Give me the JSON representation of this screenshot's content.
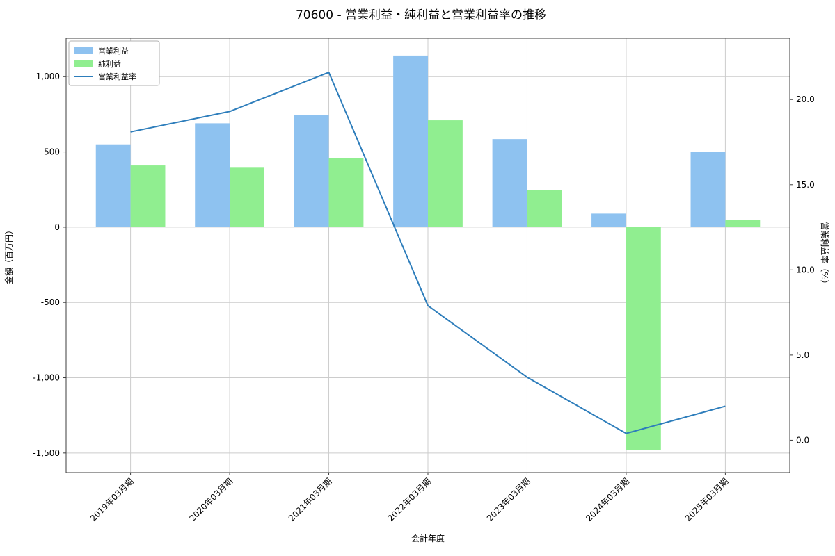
{
  "title": "70600 - 営業利益・純利益と営業利益率の推移",
  "chart_data": {
    "type": "bar",
    "categories": [
      "2019年03月期",
      "2020年03月期",
      "2021年03月期",
      "2022年03月期",
      "2023年03月期",
      "2024年03月期",
      "2025年03月期"
    ],
    "series": [
      {
        "name": "営業利益",
        "type": "bar",
        "axis": "left",
        "color": "#8ec2f0",
        "values": [
          550,
          690,
          745,
          1140,
          585,
          90,
          500
        ]
      },
      {
        "name": "純利益",
        "type": "bar",
        "axis": "left",
        "color": "#90ee90",
        "values": [
          410,
          395,
          460,
          710,
          245,
          -1480,
          50
        ]
      },
      {
        "name": "営業利益率",
        "type": "line",
        "axis": "right",
        "color": "#2d7dbb",
        "values": [
          18.1,
          19.3,
          21.6,
          7.9,
          3.7,
          0.4,
          2.0
        ]
      }
    ],
    "xlabel": "会計年度",
    "ylabel_left": "金額（百万円）",
    "ylabel_right": "営業利益率（%）",
    "axis_left": {
      "min": -1630,
      "max": 1255,
      "ticks": [
        1000,
        500,
        0,
        -500,
        -1000,
        -1500
      ]
    },
    "axis_right": {
      "min": -1.9,
      "max": 23.6,
      "ticks": [
        20,
        15,
        10,
        5,
        0
      ]
    },
    "grid": true,
    "legend_position": "upper left",
    "colors": {
      "grid": "#cccccc",
      "spine": "#3c3c3c",
      "background": "#ffffff",
      "legend_border": "#b0b0b0"
    }
  }
}
